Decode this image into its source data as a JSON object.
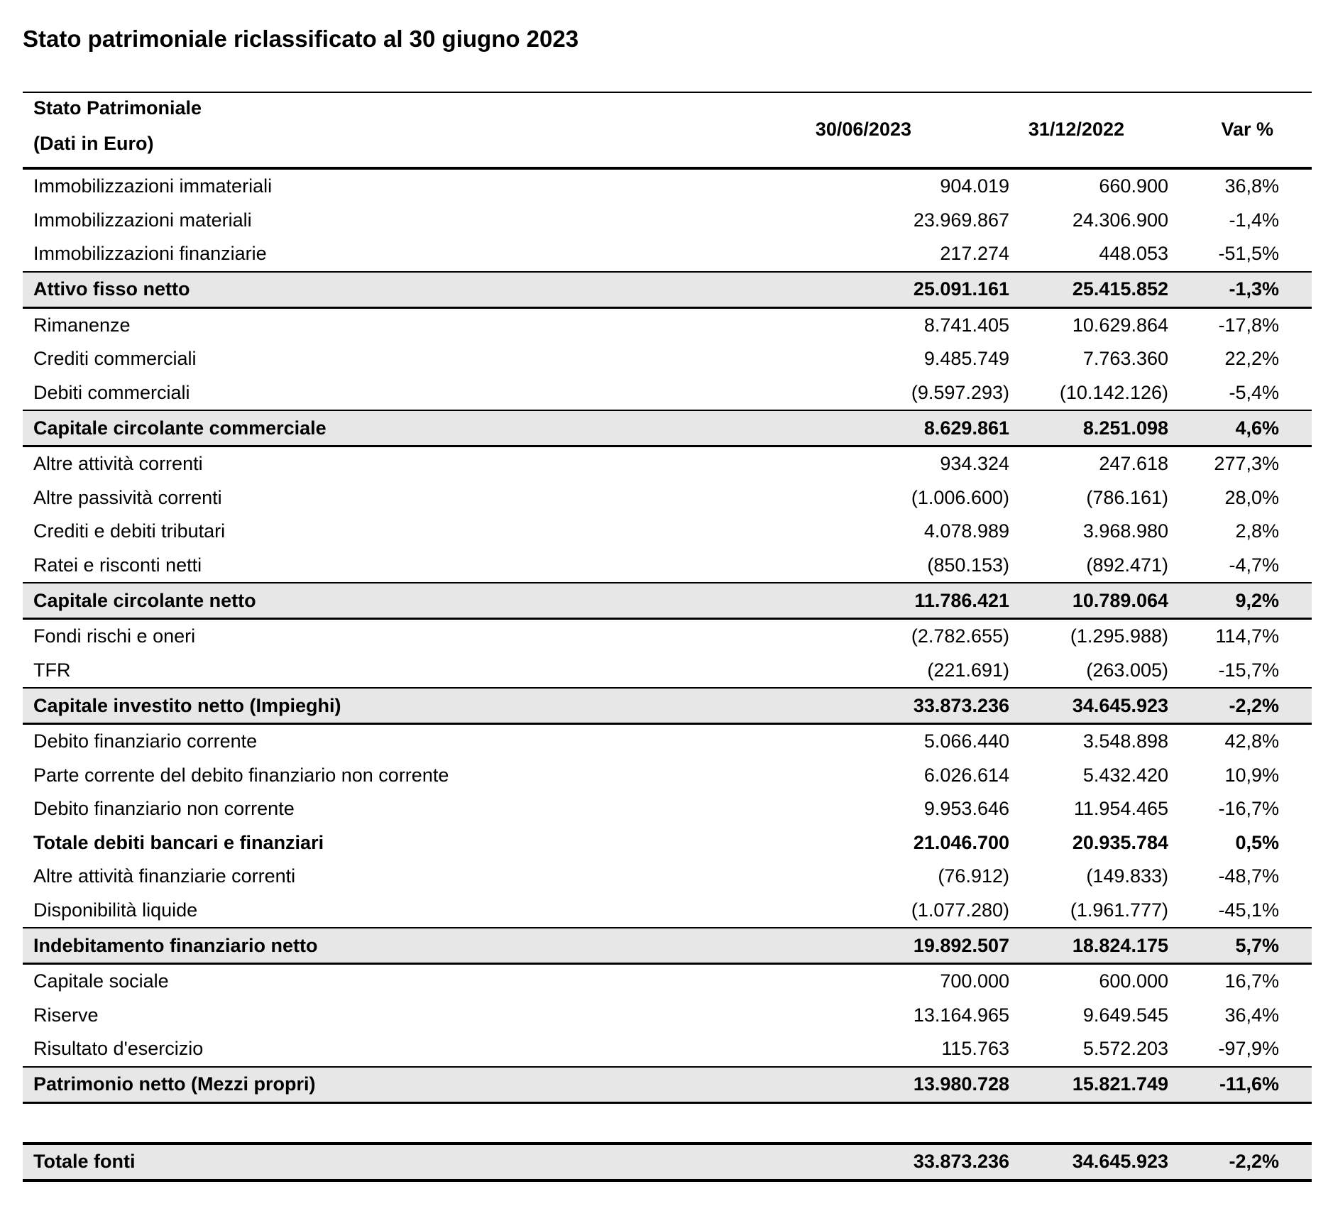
{
  "title": "Stato patrimoniale riclassificato al 30 giugno 2023",
  "table": {
    "header": {
      "label_lines": [
        "Stato Patrimoniale",
        "(Dati in Euro)"
      ],
      "columns": [
        "30/06/2023",
        "31/12/2022",
        "Var %"
      ]
    },
    "rows": [
      [
        "Immobilizzazioni immateriali",
        "904.019",
        "660.900",
        "36,8%"
      ],
      [
        "Immobilizzazioni materiali",
        "23.969.867",
        "24.306.900",
        "-1,4%"
      ],
      [
        "Immobilizzazioni finanziarie",
        "217.274",
        "448.053",
        "-51,5%"
      ],
      [
        "Attivo fisso netto",
        "25.091.161",
        "25.415.852",
        "-1,3%"
      ],
      [
        "Rimanenze",
        "8.741.405",
        "10.629.864",
        "-17,8%"
      ],
      [
        "Crediti commerciali",
        "9.485.749",
        "7.763.360",
        "22,2%"
      ],
      [
        "Debiti commerciali",
        "(9.597.293)",
        "(10.142.126)",
        "-5,4%"
      ],
      [
        "Capitale circolante commerciale",
        "8.629.861",
        "8.251.098",
        "4,6%"
      ],
      [
        "Altre attività correnti",
        "934.324",
        "247.618",
        "277,3%"
      ],
      [
        "Altre passività correnti",
        "(1.006.600)",
        "(786.161)",
        "28,0%"
      ],
      [
        "Crediti e debiti tributari",
        "4.078.989",
        "3.968.980",
        "2,8%"
      ],
      [
        "Ratei e risconti netti",
        "(850.153)",
        "(892.471)",
        "-4,7%"
      ],
      [
        "Capitale circolante netto",
        "11.786.421",
        "10.789.064",
        "9,2%"
      ],
      [
        "Fondi rischi e oneri",
        "(2.782.655)",
        "(1.295.988)",
        "114,7%"
      ],
      [
        "TFR",
        "(221.691)",
        "(263.005)",
        "-15,7%"
      ],
      [
        "Capitale investito netto (Impieghi)",
        "33.873.236",
        "34.645.923",
        "-2,2%"
      ],
      [
        "Debito finanziario corrente",
        "5.066.440",
        "3.548.898",
        "42,8%"
      ],
      [
        "Parte corrente del debito finanziario non corrente",
        "6.026.614",
        "5.432.420",
        "10,9%"
      ],
      [
        "Debito finanziario non corrente",
        "9.953.646",
        "11.954.465",
        "-16,7%"
      ],
      [
        "Totale debiti bancari e finanziari",
        "21.046.700",
        "20.935.784",
        "0,5%"
      ],
      [
        "Altre attività finanziarie correnti",
        "(76.912)",
        "(149.833)",
        "-48,7%"
      ],
      [
        "Disponibilità liquide",
        "(1.077.280)",
        "(1.961.777)",
        "-45,1%"
      ],
      [
        "Indebitamento finanziario netto",
        "19.892.507",
        "18.824.175",
        "5,7%"
      ],
      [
        "Capitale sociale",
        "700.000",
        "600.000",
        "16,7%"
      ],
      [
        "Riserve",
        "13.164.965",
        "9.649.545",
        "36,4%"
      ],
      [
        "Risultato d'esercizio",
        "115.763",
        "5.572.203",
        "-97,9%"
      ],
      [
        "Patrimonio netto (Mezzi propri)",
        "13.980.728",
        "15.821.749",
        "-11,6%"
      ],
      [
        "Totale fonti",
        "33.873.236",
        "34.645.923",
        "-2,2%"
      ]
    ]
  }
}
